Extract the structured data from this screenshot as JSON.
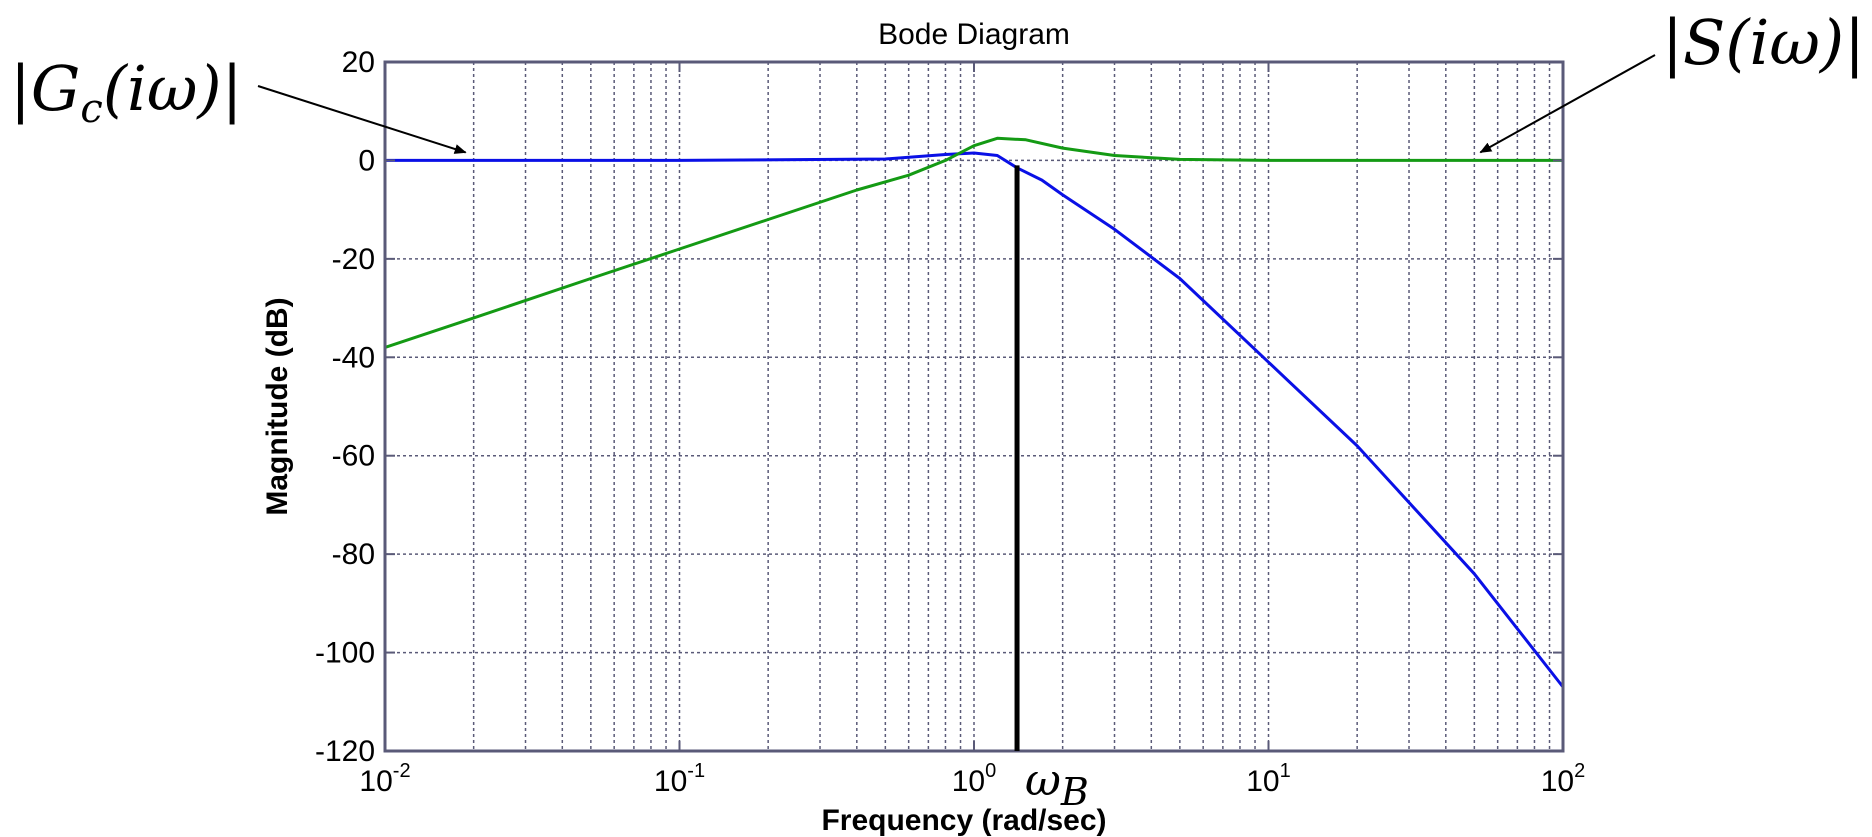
{
  "chart_data": {
    "type": "line",
    "title": "Bode Diagram",
    "xlabel": "Frequency  (rad/sec)",
    "ylabel": "Magnitude (dB)",
    "x_scale": "log",
    "xlim": [
      0.01,
      100
    ],
    "ylim": [
      -120,
      20
    ],
    "x_ticks": [
      {
        "base": "10",
        "exp": "-2"
      },
      {
        "base": "10",
        "exp": "-1"
      },
      {
        "base": "10",
        "exp": "0"
      },
      {
        "base": "10",
        "exp": "1"
      },
      {
        "base": "10",
        "exp": "2"
      }
    ],
    "y_ticks": [
      "20",
      "0",
      "-20",
      "-40",
      "-60",
      "-80",
      "-100",
      "-120"
    ],
    "grid": true,
    "series": [
      {
        "name": "|G_c(iω)|",
        "color": "#0a10e6",
        "points": [
          [
            0.01,
            0
          ],
          [
            0.1,
            0
          ],
          [
            0.5,
            0.3
          ],
          [
            0.8,
            1.2
          ],
          [
            1.0,
            1.5
          ],
          [
            1.2,
            1.0
          ],
          [
            1.4,
            -1.5
          ],
          [
            1.7,
            -4
          ],
          [
            2.0,
            -7
          ],
          [
            3.0,
            -14
          ],
          [
            5.0,
            -24
          ],
          [
            10,
            -41
          ],
          [
            20,
            -58
          ],
          [
            50,
            -84
          ],
          [
            100,
            -107
          ]
        ]
      },
      {
        "name": "|S(iω)|",
        "color": "#149a14",
        "points": [
          [
            0.01,
            -38
          ],
          [
            0.02,
            -32
          ],
          [
            0.05,
            -24
          ],
          [
            0.1,
            -18
          ],
          [
            0.2,
            -12
          ],
          [
            0.4,
            -6
          ],
          [
            0.6,
            -3
          ],
          [
            0.8,
            0
          ],
          [
            1.0,
            3
          ],
          [
            1.2,
            4.5
          ],
          [
            1.5,
            4.2
          ],
          [
            2.0,
            2.5
          ],
          [
            3.0,
            1
          ],
          [
            5.0,
            0.2
          ],
          [
            10,
            0
          ],
          [
            100,
            0
          ]
        ]
      }
    ],
    "annotations": [
      {
        "text": "ω",
        "sub": "B",
        "kind": "vertical-marker",
        "x": 1.4
      },
      {
        "label": "|G",
        "sub": "c",
        "tail": "(iω)|",
        "points_to": "|G_c(iω)|",
        "at_x": 0.02,
        "at_y": 0
      },
      {
        "label": "|S(iω)|",
        "points_to": "|S(iω)|",
        "at_x": 50,
        "at_y": 0
      }
    ],
    "colors": {
      "axes": "#5a5a78",
      "grid": "#5a5a78",
      "marker": "#000000"
    }
  }
}
